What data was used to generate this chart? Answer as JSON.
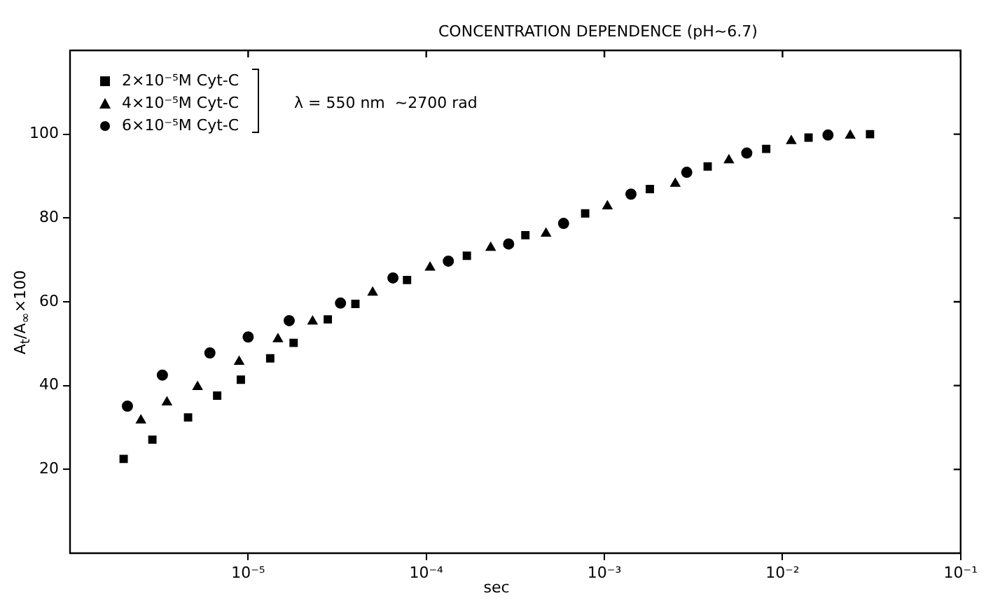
{
  "chart_data": {
    "type": "scatter",
    "title": "CONCENTRATION DEPENDENCE (pH~6.7)",
    "xlabel": "sec",
    "ylabel": "A$_{t}$/A$_{∞}$×100",
    "log": "x",
    "grid": false,
    "legend": "top left",
    "xlim": [
      1e-06,
      0.1
    ],
    "ylim": [
      0,
      120
    ],
    "xticks": [
      {
        "value": 1e-05,
        "label": "10⁻⁵"
      },
      {
        "value": 0.0001,
        "label": "10⁻⁴"
      },
      {
        "value": 0.001,
        "label": "10⁻³"
      },
      {
        "value": 0.01,
        "label": "10⁻²"
      },
      {
        "value": 0.1,
        "label": "10⁻¹"
      }
    ],
    "yticks": [
      20,
      40,
      60,
      80,
      100
    ],
    "annotations": [
      "λ = 550 nm  ~2700 rad"
    ],
    "series": [
      {
        "name": "2×10⁻⁵M Cyt-C",
        "color": "#000000",
        "marker": "square",
        "x": [
          2e-06,
          2.9e-06,
          4.6e-06,
          6.7e-06,
          9.1e-06,
          1.33e-05,
          1.8e-05,
          2.8e-05,
          4e-05,
          7.8e-05,
          0.000169,
          0.00036,
          0.00078,
          0.0018,
          0.0038,
          0.0081,
          0.014,
          0.031
        ],
        "values": [
          22.5,
          27.1,
          32.4,
          37.6,
          41.4,
          46.5,
          50.2,
          55.8,
          59.5,
          65.2,
          71.0,
          75.9,
          81.1,
          86.9,
          92.3,
          96.5,
          99.2,
          100
        ]
      },
      {
        "name": "4×10⁻⁵M Cyt-C",
        "color": "#000000",
        "marker": "triangle",
        "x": [
          2.5e-06,
          3.5e-06,
          5.2e-06,
          8.9e-06,
          1.47e-05,
          2.3e-05,
          5e-05,
          0.000105,
          0.00023,
          0.00047,
          0.00104,
          0.0025,
          0.005,
          0.0112,
          0.024
        ],
        "values": [
          31.7,
          36.0,
          39.7,
          45.7,
          51.1,
          55.3,
          62.2,
          68.2,
          72.9,
          76.3,
          82.8,
          88.2,
          93.8,
          98.4,
          99.7
        ]
      },
      {
        "name": "6×10⁻⁵M Cyt-C",
        "color": "#000000",
        "marker": "circle",
        "x": [
          2.1e-06,
          3.3e-06,
          6.1e-06,
          1e-05,
          1.7e-05,
          3.3e-05,
          6.5e-05,
          0.000133,
          0.00029,
          0.00059,
          0.00141,
          0.0029,
          0.0063,
          0.018
        ],
        "values": [
          35.1,
          42.5,
          47.8,
          51.6,
          55.5,
          59.7,
          65.7,
          69.7,
          73.8,
          78.7,
          85.7,
          90.9,
          95.5,
          99.8
        ]
      }
    ]
  }
}
